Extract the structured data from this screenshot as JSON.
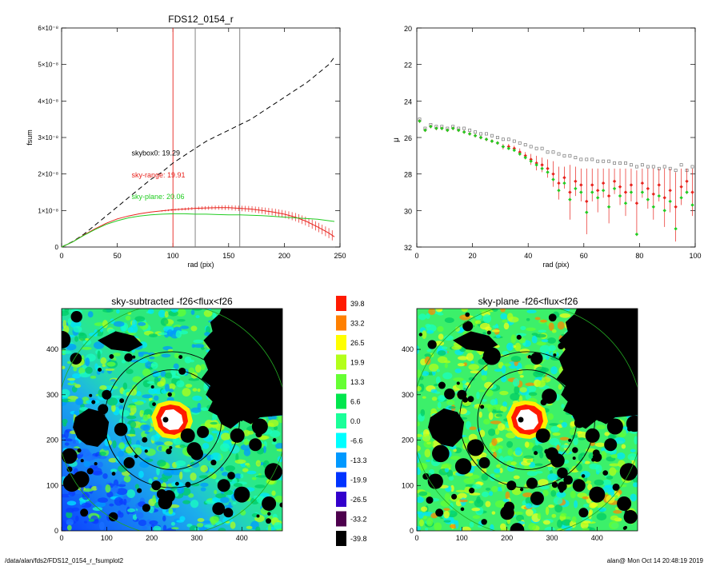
{
  "colors": {
    "sky_range": "#e8231d",
    "sky_plane": "#22cc22",
    "skybox0": "#000000",
    "marker_red": "#e8231d",
    "marker_grey": "#777777",
    "marker_green": "#22cc22"
  },
  "chart_data": [
    {
      "id": "fsum_profile",
      "type": "line",
      "title": "FDS12_0154_r",
      "xlabel": "rad (pix)",
      "ylabel": "fsum",
      "xlim": [
        0,
        250
      ],
      "ylim": [
        0,
        6e-08
      ],
      "xticks": [
        0,
        50,
        100,
        150,
        200,
        250
      ],
      "yticks": [
        {
          "value": 0,
          "label": "0"
        },
        {
          "value": 1e-08,
          "label": "1×10⁻⁸"
        },
        {
          "value": 2e-08,
          "label": "2×10⁻⁸"
        },
        {
          "value": 3e-08,
          "label": "3×10⁻⁸"
        },
        {
          "value": 4e-08,
          "label": "4×10⁻⁸"
        },
        {
          "value": 5e-08,
          "label": "5×10⁻⁸"
        },
        {
          "value": 6e-08,
          "label": "6×10⁻⁸"
        }
      ],
      "vlines": [
        {
          "x": 100,
          "color": "#e8231d"
        },
        {
          "x": 120,
          "color": "#777777"
        },
        {
          "x": 160,
          "color": "#777777"
        }
      ],
      "annotations": [
        {
          "text": "skybox0: 19.29",
          "x": 60,
          "y": 2.4e-08,
          "color": "#000000"
        },
        {
          "text": "sky-range: 19.91",
          "x": 60,
          "y": 1.8e-08,
          "color": "#e8231d"
        },
        {
          "text": "sky-plane: 20.06",
          "x": 60,
          "y": 1.2e-08,
          "color": "#22cc22"
        }
      ],
      "series": [
        {
          "key": "skybox0",
          "style": "dashed",
          "color": "#000000",
          "x": [
            0,
            10,
            20,
            30,
            40,
            50,
            60,
            70,
            80,
            90,
            100,
            110,
            120,
            130,
            140,
            150,
            160,
            170,
            180,
            190,
            200,
            210,
            220,
            230,
            240,
            245
          ],
          "y": [
            0,
            1.5e-09,
            3.5e-09,
            6e-09,
            8.5e-09,
            1.1e-08,
            1.35e-08,
            1.6e-08,
            1.85e-08,
            2.05e-08,
            2.3e-08,
            2.5e-08,
            2.7e-08,
            2.9e-08,
            3.05e-08,
            3.2e-08,
            3.35e-08,
            3.5e-08,
            3.7e-08,
            3.9e-08,
            4.1e-08,
            4.3e-08,
            4.5e-08,
            4.75e-08,
            5e-08,
            5.2e-08
          ]
        },
        {
          "key": "sky-range",
          "style": "solid-errorbars",
          "color": "#e8231d",
          "x": [
            0,
            10,
            20,
            30,
            40,
            50,
            60,
            70,
            80,
            90,
            100,
            110,
            120,
            130,
            140,
            150,
            160,
            170,
            180,
            190,
            200,
            210,
            220,
            230,
            240,
            245
          ],
          "y": [
            0,
            1.4e-09,
            3.3e-09,
            5e-09,
            6.5e-09,
            7.7e-09,
            8.5e-09,
            9.1e-09,
            9.6e-09,
            9.9e-09,
            1.02e-08,
            1.04e-08,
            1.06e-08,
            1.07e-08,
            1.08e-08,
            1.08e-08,
            1.06e-08,
            1.04e-08,
            1e-08,
            9.6e-09,
            9e-09,
            8.2e-09,
            7e-09,
            5.5e-09,
            3.8e-09,
            2.8e-09
          ]
        },
        {
          "key": "sky-plane",
          "style": "solid",
          "color": "#22cc22",
          "x": [
            0,
            10,
            20,
            30,
            40,
            50,
            60,
            70,
            80,
            90,
            100,
            110,
            120,
            130,
            140,
            150,
            160,
            170,
            180,
            190,
            200,
            210,
            220,
            230,
            240,
            245
          ],
          "y": [
            0,
            1.4e-09,
            3.2e-09,
            4.8e-09,
            6.2e-09,
            7.2e-09,
            8e-09,
            8.5e-09,
            8.8e-09,
            9e-09,
            9.1e-09,
            9.1e-09,
            9e-09,
            9e-09,
            8.9e-09,
            8.8e-09,
            8.8e-09,
            8.7e-09,
            8.6e-09,
            8.4e-09,
            8.2e-09,
            8e-09,
            7.8e-09,
            7.6e-09,
            7.2e-09,
            7e-09
          ]
        }
      ]
    },
    {
      "id": "mu_profile",
      "type": "scatter",
      "xlabel": "rad (pix)",
      "ylabel": "μ",
      "xlim": [
        0,
        100
      ],
      "ylim": [
        32,
        20
      ],
      "xticks": [
        0,
        20,
        40,
        60,
        80,
        100
      ],
      "yticks": [
        20,
        22,
        24,
        26,
        28,
        30,
        32
      ],
      "series": [
        {
          "key": "skybox0",
          "marker": "square",
          "color": "#777777",
          "x": [
            1,
            3,
            5,
            7,
            9,
            11,
            13,
            15,
            17,
            19,
            21,
            23,
            25,
            27,
            29,
            31,
            33,
            35,
            37,
            39,
            41,
            43,
            45,
            47,
            49,
            51,
            53,
            55,
            57,
            59,
            61,
            63,
            65,
            67,
            69,
            71,
            73,
            75,
            77,
            79,
            81,
            83,
            85,
            87,
            89,
            91,
            93,
            95,
            97,
            99
          ],
          "y": [
            25.0,
            25.5,
            25.3,
            25.4,
            25.4,
            25.5,
            25.4,
            25.5,
            25.5,
            25.6,
            25.7,
            25.8,
            25.8,
            25.9,
            26.0,
            26.1,
            26.1,
            26.2,
            26.3,
            26.4,
            26.5,
            26.6,
            26.6,
            26.8,
            26.8,
            26.9,
            27.0,
            27.0,
            27.1,
            27.2,
            27.2,
            27.2,
            27.3,
            27.3,
            27.3,
            27.4,
            27.4,
            27.4,
            27.5,
            27.6,
            27.5,
            27.6,
            27.6,
            27.7,
            27.6,
            27.7,
            27.8,
            27.5,
            27.8,
            27.6
          ]
        },
        {
          "key": "sky-range",
          "marker": "diamond-errorbar",
          "color": "#e8231d",
          "x": [
            1,
            3,
            5,
            7,
            9,
            11,
            13,
            15,
            17,
            19,
            21,
            23,
            25,
            27,
            29,
            31,
            33,
            35,
            37,
            39,
            41,
            43,
            45,
            47,
            49,
            51,
            53,
            55,
            57,
            59,
            61,
            63,
            65,
            67,
            69,
            71,
            73,
            75,
            77,
            79,
            81,
            83,
            85,
            87,
            89,
            91,
            93,
            95,
            97,
            99
          ],
          "y": [
            25.1,
            25.6,
            25.4,
            25.5,
            25.5,
            25.6,
            25.5,
            25.6,
            25.7,
            25.8,
            25.9,
            26.0,
            26.1,
            26.2,
            26.3,
            26.5,
            26.5,
            26.6,
            26.8,
            27.0,
            27.2,
            27.4,
            27.5,
            27.7,
            28.0,
            28.5,
            28.2,
            29.0,
            28.4,
            28.6,
            29.5,
            28.6,
            28.9,
            28.5,
            29.2,
            28.4,
            28.7,
            29.0,
            28.6,
            29.6,
            28.5,
            28.8,
            29.1,
            28.6,
            29.3,
            28.9,
            29.8,
            28.7,
            28.4,
            29.0
          ],
          "err": [
            0.1,
            0.1,
            0.1,
            0.1,
            0.1,
            0.1,
            0.1,
            0.1,
            0.1,
            0.1,
            0.1,
            0.1,
            0.1,
            0.1,
            0.1,
            0.15,
            0.15,
            0.15,
            0.2,
            0.2,
            0.3,
            0.4,
            0.4,
            0.5,
            0.7,
            0.9,
            0.6,
            1.5,
            0.8,
            0.9,
            1.8,
            0.9,
            1.2,
            0.8,
            1.5,
            0.7,
            1.0,
            1.3,
            0.9,
            1.8,
            0.8,
            1.1,
            1.4,
            0.9,
            1.6,
            1.2,
            1.9,
            1.0,
            0.7,
            1.3
          ]
        },
        {
          "key": "sky-plane",
          "marker": "diamond",
          "color": "#22cc22",
          "x": [
            1,
            3,
            5,
            7,
            9,
            11,
            13,
            15,
            17,
            19,
            21,
            23,
            25,
            27,
            29,
            31,
            33,
            35,
            37,
            39,
            41,
            43,
            45,
            47,
            49,
            51,
            53,
            55,
            57,
            59,
            61,
            63,
            65,
            67,
            69,
            71,
            73,
            75,
            77,
            79,
            81,
            83,
            85,
            87,
            89,
            91,
            93,
            95,
            97,
            99
          ],
          "y": [
            25.1,
            25.6,
            25.4,
            25.5,
            25.5,
            25.6,
            25.5,
            25.6,
            25.7,
            25.8,
            25.9,
            26.0,
            26.1,
            26.2,
            26.3,
            26.5,
            26.6,
            26.7,
            26.9,
            27.1,
            27.3,
            27.5,
            27.7,
            27.9,
            28.3,
            28.9,
            28.5,
            29.4,
            28.8,
            29.0,
            30.1,
            29.0,
            29.3,
            28.9,
            29.8,
            28.8,
            29.2,
            29.6,
            29.0,
            31.3,
            29.0,
            29.4,
            29.8,
            29.2,
            30.0,
            29.5,
            31.0,
            29.3,
            29.0,
            29.7
          ]
        }
      ]
    },
    {
      "id": "sky_subtracted_map",
      "type": "heatmap",
      "title": "sky-subtracted -f26<flux<f26",
      "xlim": [
        0,
        490
      ],
      "ylim": [
        0,
        490
      ],
      "xticks": [
        0,
        100,
        200,
        300,
        400
      ],
      "yticks": [
        0,
        100,
        200,
        300,
        400
      ],
      "center": [
        245,
        245
      ],
      "circle_radii_black": [
        110,
        150
      ],
      "circle_radius_green": 255
    },
    {
      "id": "colorbar",
      "type": "heatmap",
      "levels": [
        {
          "label": "39.8",
          "color": "#ff1a00"
        },
        {
          "label": "33.2",
          "color": "#ff8000"
        },
        {
          "label": "26.5",
          "color": "#ffff00"
        },
        {
          "label": "19.9",
          "color": "#b3ff1a"
        },
        {
          "label": "13.3",
          "color": "#66ff33"
        },
        {
          "label": "6.6",
          "color": "#00e64d"
        },
        {
          "label": "0.0",
          "color": "#1aff99"
        },
        {
          "label": "-6.6",
          "color": "#00ffff"
        },
        {
          "label": "-13.3",
          "color": "#0099ff"
        },
        {
          "label": "-19.9",
          "color": "#0033ff"
        },
        {
          "label": "-26.5",
          "color": "#3300cc"
        },
        {
          "label": "-33.2",
          "color": "#4d004d"
        },
        {
          "label": "-39.8",
          "color": "#000000"
        }
      ]
    },
    {
      "id": "sky_plane_map",
      "type": "heatmap",
      "title": "sky-plane -f26<flux<f26",
      "xlim": [
        0,
        490
      ],
      "ylim": [
        0,
        490
      ],
      "xticks": [
        0,
        100,
        200,
        300,
        400
      ],
      "yticks": [
        0,
        100,
        200,
        300,
        400
      ],
      "center": [
        245,
        245
      ],
      "circle_radii_black": [
        110,
        150
      ],
      "circle_radius_green": 255
    }
  ],
  "footer": {
    "left": "/data/alan/fds2/FDS12_0154_r_fsumplot2",
    "right": "alan@  Mon Oct 14 20:48:19 2019"
  }
}
